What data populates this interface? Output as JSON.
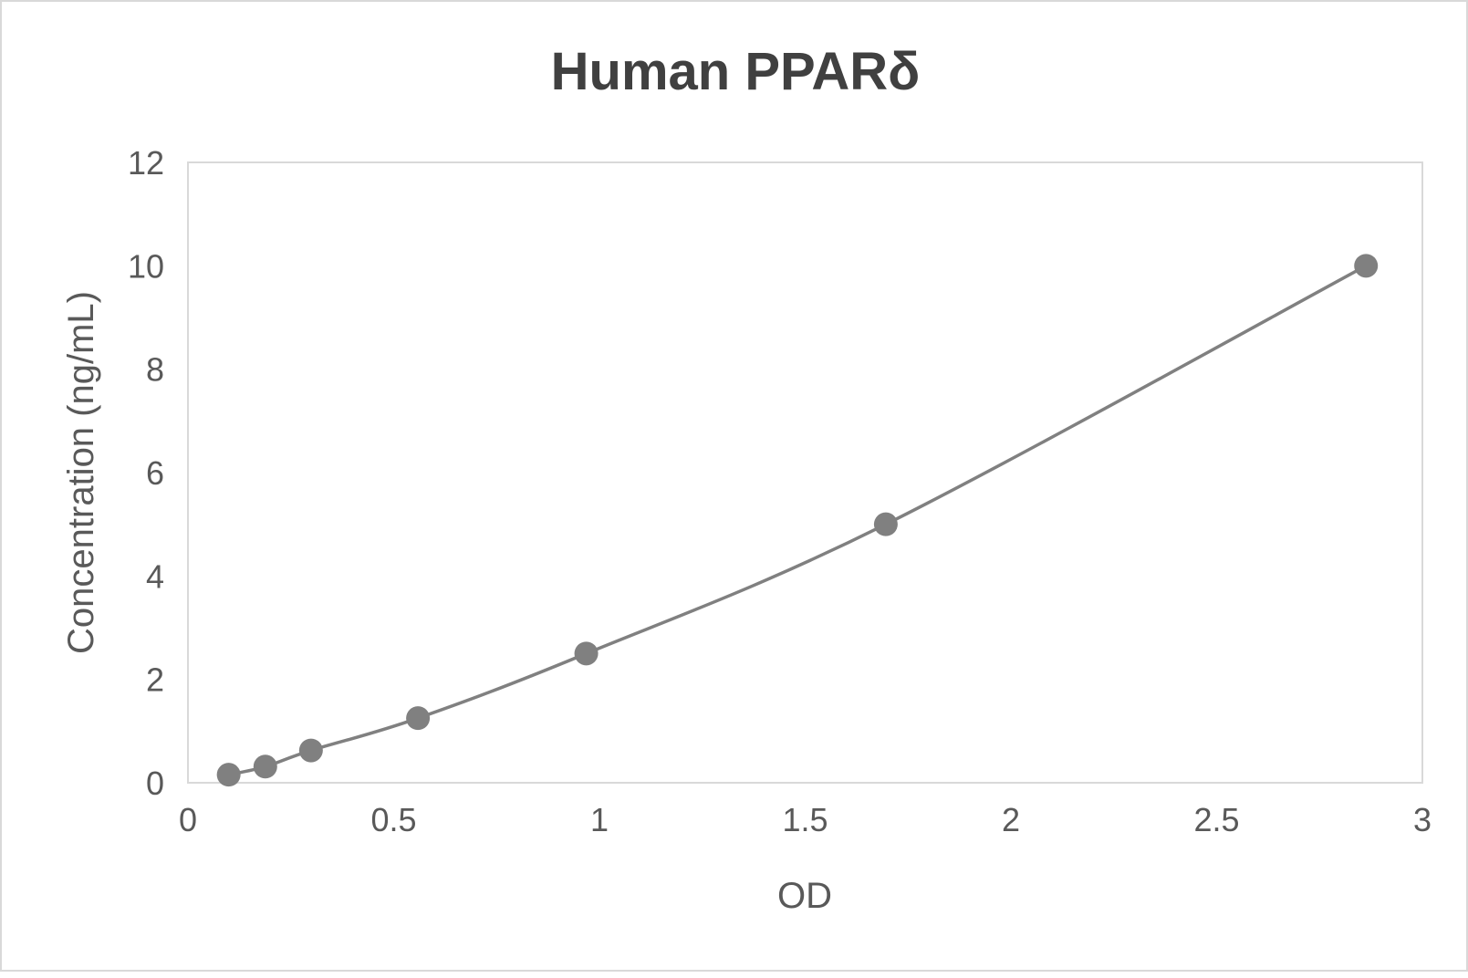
{
  "chart_data": {
    "type": "scatter",
    "title": "Human PPARδ",
    "xlabel": "OD",
    "ylabel": "Concentration (ng/mL)",
    "xlim": [
      0,
      3
    ],
    "ylim": [
      0,
      12
    ],
    "x_ticks": [
      "0",
      "0.5",
      "1",
      "1.5",
      "2",
      "2.5",
      "3"
    ],
    "y_ticks": [
      "0",
      "2",
      "4",
      "6",
      "8",
      "10",
      "12"
    ],
    "grid": false,
    "legend": "none",
    "smoothed_line": true,
    "series": [
      {
        "color": "#808080",
        "points": [
          {
            "x": 0.099,
            "y": 0.156
          },
          {
            "x": 0.188,
            "y": 0.313
          },
          {
            "x": 0.299,
            "y": 0.625
          },
          {
            "x": 0.559,
            "y": 1.25
          },
          {
            "x": 0.968,
            "y": 2.5
          },
          {
            "x": 1.696,
            "y": 5
          },
          {
            "x": 2.863,
            "y": 10
          }
        ]
      }
    ]
  }
}
